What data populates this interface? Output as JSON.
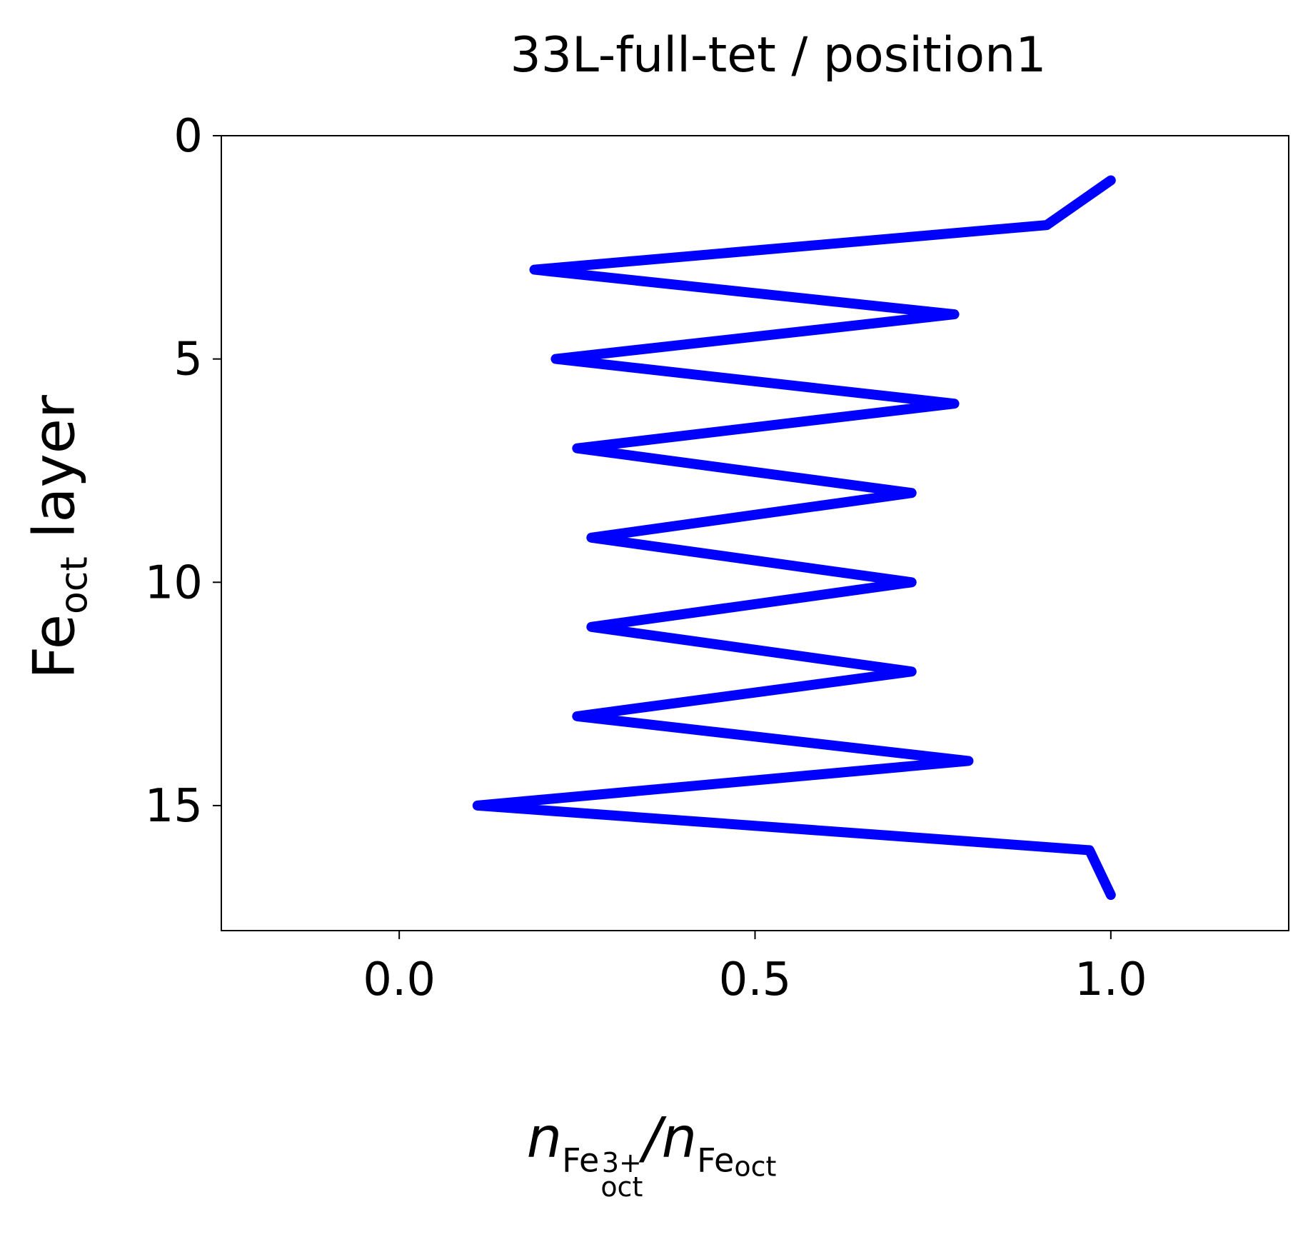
{
  "chart_data": {
    "type": "line",
    "title": "33L-full-tet / position1",
    "xlabel": {
      "main": "n",
      "sub1_base": "Fe",
      "sub1_sup": "3+",
      "sub1_sub": "oct",
      "slash": "/",
      "main2": "n",
      "sub2_base": "Fe",
      "sub2_sub": "oct"
    },
    "ylabel": {
      "base": "Fe",
      "sub": "oct",
      "rest": " layer"
    },
    "xlim": [
      -0.25,
      1.25
    ],
    "ylim": [
      17.8,
      0
    ],
    "y_inverted": true,
    "x_ticks": [
      0.0,
      0.5,
      1.0
    ],
    "x_tick_labels": [
      "0.0",
      "0.5",
      "1.0"
    ],
    "y_ticks": [
      0,
      5,
      10,
      15
    ],
    "y_tick_labels": [
      "0",
      "5",
      "10",
      "15"
    ],
    "grid": false,
    "line_color": "#0000ff",
    "series": [
      {
        "x": [
          1.0,
          0.91,
          0.19,
          0.78,
          0.22,
          0.78,
          0.25,
          0.72,
          0.27,
          0.72,
          0.27,
          0.72,
          0.25,
          0.8,
          0.11,
          0.97,
          1.0
        ],
        "y": [
          1,
          2,
          3,
          4,
          5,
          6,
          7,
          8,
          9,
          10,
          11,
          12,
          13,
          14,
          15,
          16,
          17
        ]
      }
    ]
  }
}
